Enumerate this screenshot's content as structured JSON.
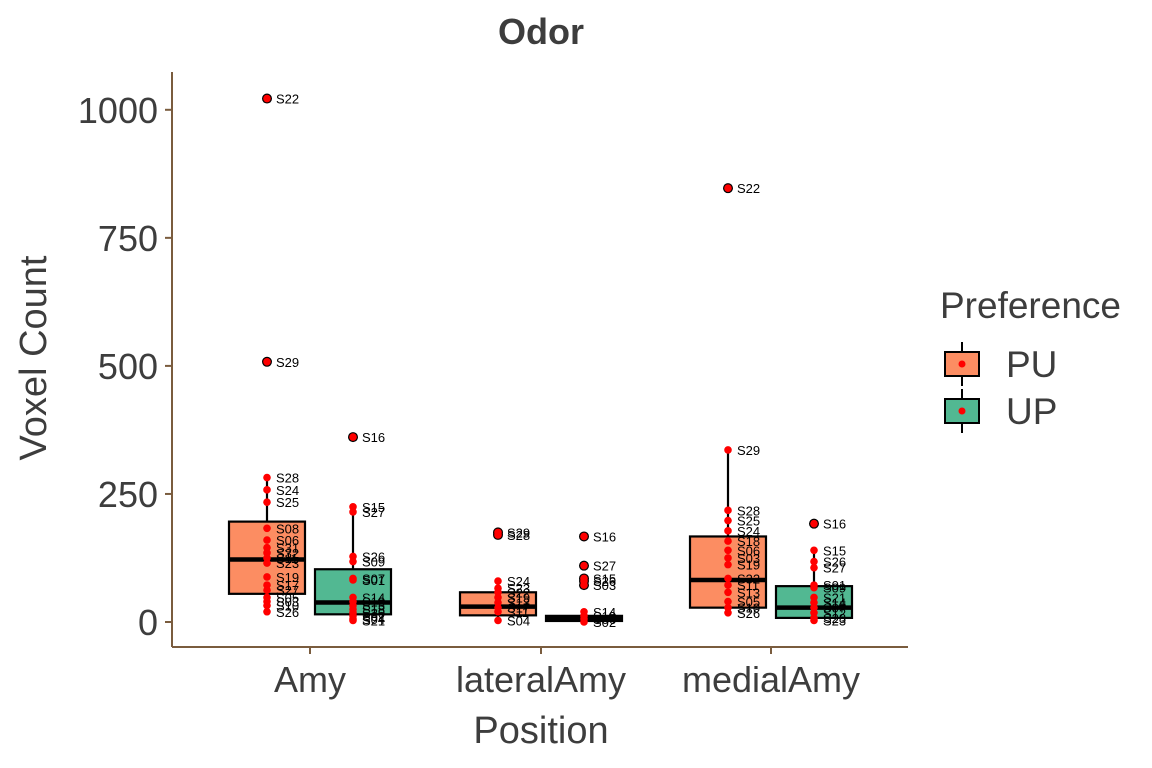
{
  "chart_data": {
    "type": "box",
    "title": "Odor",
    "xlabel": "Position",
    "ylabel": "Voxel Count",
    "ylim": [
      -50,
      1070
    ],
    "yticks": [
      0,
      250,
      500,
      750,
      1000
    ],
    "categories": [
      "Amy",
      "lateralAmy",
      "medialAmy"
    ],
    "legend": {
      "title": "Preference",
      "position": "right"
    },
    "series": [
      {
        "name": "PU",
        "color": "#FC8D62",
        "boxes": [
          {
            "q1": 55,
            "median": 122,
            "q3": 196,
            "whisker_low": 20,
            "whisker_high": 282,
            "outliers": [
              1022,
              508
            ]
          },
          {
            "q1": 13,
            "median": 30,
            "q3": 58,
            "whisker_low": 3,
            "whisker_high": 80,
            "outliers": [
              175,
              170
            ]
          },
          {
            "q1": 28,
            "median": 82,
            "q3": 167,
            "whisker_low": 18,
            "whisker_high": 336,
            "outliers": [
              847
            ]
          }
        ]
      },
      {
        "name": "UP",
        "color": "#52B892",
        "boxes": [
          {
            "q1": 15,
            "median": 38,
            "q3": 103,
            "whisker_low": 3,
            "whisker_high": 225,
            "outliers": [
              361
            ]
          },
          {
            "q1": 2,
            "median": 7,
            "q3": 12,
            "whisker_low": 0,
            "whisker_high": 20,
            "outliers": [
              167,
              110,
              85,
              80,
              72
            ]
          },
          {
            "q1": 8,
            "median": 28,
            "q3": 70,
            "whisker_low": 3,
            "whisker_high": 140,
            "outliers": [
              192
            ]
          }
        ]
      }
    ],
    "point_color": "#FF0000",
    "point_labels": [
      {
        "cat": 0,
        "grp": 0,
        "pts": [
          [
            "S22",
            1022
          ],
          [
            "S29",
            508
          ],
          [
            "S28",
            282
          ],
          [
            "S24",
            258
          ],
          [
            "S25",
            234
          ],
          [
            "S08",
            183
          ],
          [
            "S06",
            160
          ],
          [
            "S31",
            145
          ],
          [
            "S32",
            135
          ],
          [
            "S11",
            125
          ],
          [
            "S23",
            115
          ],
          [
            "S19",
            88
          ],
          [
            "S17",
            72
          ],
          [
            "S27",
            62
          ],
          [
            "S05",
            48
          ],
          [
            "S03",
            40
          ],
          [
            "S10",
            32
          ],
          [
            "S26",
            20
          ]
        ]
      },
      {
        "cat": 0,
        "grp": 1,
        "pts": [
          [
            "S16",
            361
          ],
          [
            "S15",
            225
          ],
          [
            "S27",
            215
          ],
          [
            "S26",
            128
          ],
          [
            "S09",
            118
          ],
          [
            "S07",
            85
          ],
          [
            "S01",
            82
          ],
          [
            "S14",
            48
          ],
          [
            "S12",
            40
          ],
          [
            "S13",
            32
          ],
          [
            "S18",
            25
          ],
          [
            "S20",
            18
          ],
          [
            "S02",
            12
          ],
          [
            "S04",
            6
          ],
          [
            "S21",
            3
          ]
        ]
      },
      {
        "cat": 1,
        "grp": 0,
        "pts": [
          [
            "S29",
            175
          ],
          [
            "S28",
            170
          ],
          [
            "S24",
            80
          ],
          [
            "S23",
            66
          ],
          [
            "S22",
            58
          ],
          [
            "S19",
            48
          ],
          [
            "S13",
            38
          ],
          [
            "S17",
            28
          ],
          [
            "S11",
            20
          ],
          [
            "S04",
            3
          ]
        ]
      },
      {
        "cat": 1,
        "grp": 1,
        "pts": [
          [
            "S16",
            167
          ],
          [
            "S27",
            110
          ],
          [
            "S15",
            85
          ],
          [
            "S26",
            80
          ],
          [
            "S03",
            72
          ],
          [
            "S14",
            20
          ],
          [
            "S12",
            12
          ],
          [
            "S06",
            6
          ],
          [
            "S02",
            0
          ]
        ]
      },
      {
        "cat": 2,
        "grp": 0,
        "pts": [
          [
            "S22",
            847
          ],
          [
            "S29",
            336
          ],
          [
            "S28",
            218
          ],
          [
            "S25",
            198
          ],
          [
            "S24",
            178
          ],
          [
            "S18",
            158
          ],
          [
            "S06",
            140
          ],
          [
            "S03",
            125
          ],
          [
            "S19",
            112
          ],
          [
            "S32",
            85
          ],
          [
            "S11",
            72
          ],
          [
            "S13",
            58
          ],
          [
            "S05",
            40
          ],
          [
            "S10",
            28
          ],
          [
            "S26",
            18
          ]
        ]
      },
      {
        "cat": 2,
        "grp": 1,
        "pts": [
          [
            "S16",
            192
          ],
          [
            "S15",
            140
          ],
          [
            "S26",
            118
          ],
          [
            "S27",
            106
          ],
          [
            "S01",
            72
          ],
          [
            "S09",
            67
          ],
          [
            "S21",
            48
          ],
          [
            "S14",
            38
          ],
          [
            "S07",
            28
          ],
          [
            "S12",
            18
          ],
          [
            "S28",
            8
          ],
          [
            "S23",
            3
          ]
        ]
      }
    ]
  }
}
